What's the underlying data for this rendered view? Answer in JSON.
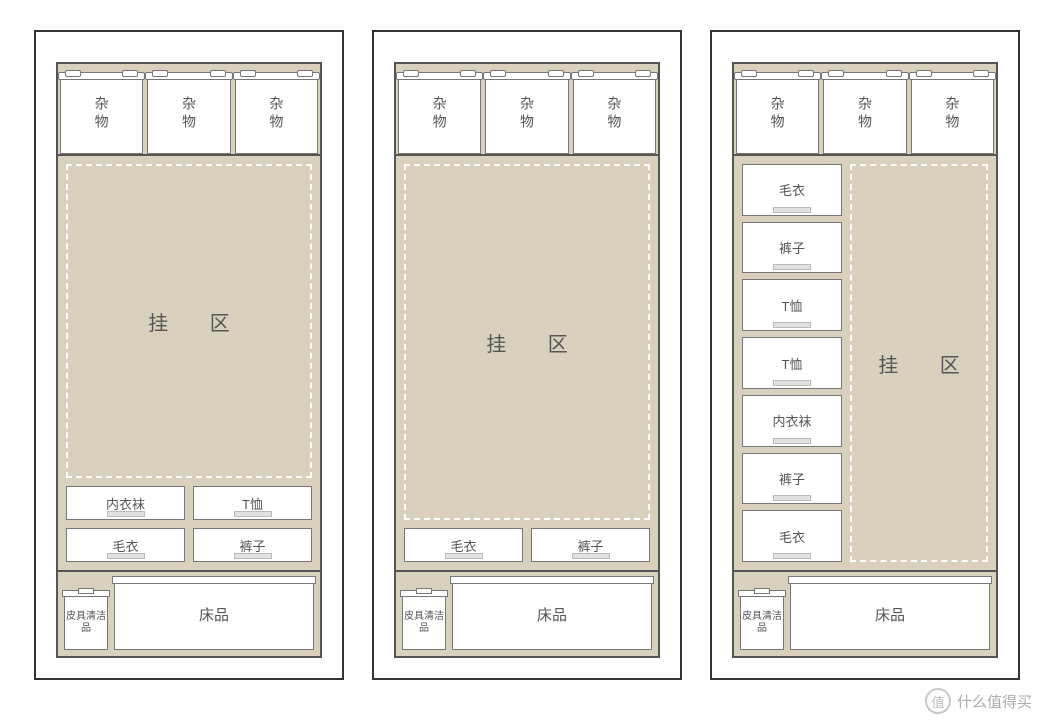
{
  "colors": {
    "page_bg": "#ffffff",
    "frame_border": "#333333",
    "inner_border": "#555555",
    "interior_bg": "#d9d1bd",
    "box_bg": "#ffffff",
    "box_border": "#777777",
    "text": "#555555",
    "dashed": "#ffffff",
    "drawer_handle_bg": "#e2e2e2",
    "drawer_handle_border": "#bbbbbb"
  },
  "typography": {
    "label_fontsize": 14,
    "hang_fontsize": 20,
    "drawer_fontsize": 13,
    "small_fontsize": 10,
    "bed_fontsize": 15
  },
  "labels": {
    "storage": "杂物",
    "hang": "挂 区",
    "underwear": "内衣袜",
    "tshirt": "T恤",
    "sweater": "毛衣",
    "pants": "裤子",
    "leather_clean": "皮具清洁品",
    "bedding": "床品"
  },
  "wardrobes": [
    {
      "top_boxes": 3,
      "middle": {
        "type": "hang_above_grid",
        "grid_rows": [
          [
            "underwear",
            "tshirt"
          ],
          [
            "sweater",
            "pants"
          ]
        ]
      },
      "bottom": {
        "small": "leather_clean",
        "large": "bedding"
      }
    },
    {
      "top_boxes": 3,
      "middle": {
        "type": "hang_above_row",
        "row": [
          "sweater",
          "pants"
        ]
      },
      "bottom": {
        "small": "leather_clean",
        "large": "bedding"
      }
    },
    {
      "top_boxes": 3,
      "middle": {
        "type": "column_and_hang",
        "column": [
          "sweater",
          "pants",
          "tshirt",
          "tshirt",
          "underwear",
          "pants",
          "sweater"
        ]
      },
      "bottom": {
        "small": "leather_clean",
        "large": "bedding"
      }
    }
  ],
  "watermark": {
    "icon_text": "值",
    "text": "什么值得买"
  }
}
